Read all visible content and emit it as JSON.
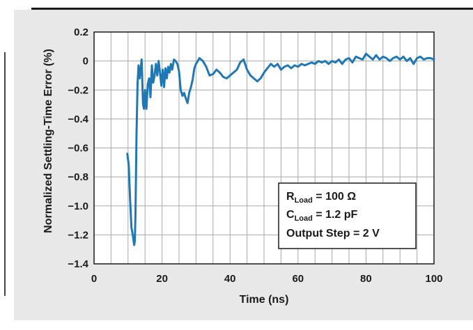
{
  "chart_data": {
    "type": "line",
    "title": "",
    "xlabel": "Time (ns)",
    "ylabel": "Normalized Settling-Time Error (%)",
    "xlim": [
      0,
      100
    ],
    "ylim": [
      -1.4,
      0.2
    ],
    "x_ticks": [
      "0",
      "20",
      "40",
      "60",
      "80",
      "100"
    ],
    "y_ticks": [
      "0.2",
      "0",
      "−0.2",
      "−0.4",
      "−0.6",
      "−0.8",
      "−1.0",
      "−1.2",
      "−1.4"
    ],
    "grid": true,
    "line_color": "#1f77b4",
    "legend": {
      "placement": "bottom-right",
      "lines": [
        {
          "main": "R",
          "sub": "Load",
          "rest": " = 100 Ω"
        },
        {
          "main": "C",
          "sub": "Load",
          "rest": " = 1.2 pF"
        },
        {
          "main": "Output Step = 2 V",
          "sub": "",
          "rest": ""
        }
      ]
    },
    "series": [
      {
        "x": [
          9.8,
          10.2,
          10.6,
          11.0,
          11.4,
          11.8,
          12.0,
          12.2,
          12.5,
          12.8,
          13.1,
          13.4,
          13.7,
          14.0,
          14.4,
          14.7,
          15.0,
          15.4,
          15.8,
          16.2,
          16.6,
          17.0,
          17.4,
          17.8,
          18.2,
          18.6,
          19.0,
          19.4,
          19.8,
          20.2,
          20.6,
          21.0,
          21.4,
          21.8,
          22.2,
          22.6,
          23.0,
          23.5,
          24.0,
          24.5,
          25.0,
          25.5,
          26.0,
          26.5,
          27.0,
          27.5,
          28.0,
          28.5,
          29.0,
          29.5,
          30.0,
          31.0,
          32.0,
          33.0,
          34.0,
          35.0,
          36.0,
          37.0,
          38.0,
          39.0,
          40.0,
          41.0,
          42.0,
          43.0,
          44.0,
          45.0,
          46.0,
          47.0,
          48.0,
          49.0,
          50.0,
          51.0,
          52.0,
          53.0,
          54.0,
          55.0,
          56.0,
          57.0,
          58.0,
          59.0,
          60.0,
          61.0,
          62.0,
          63.0,
          64.0,
          65.0,
          66.0,
          67.0,
          68.0,
          69.0,
          70.0,
          71.0,
          72.0,
          73.0,
          74.0,
          75.0,
          76.0,
          77.0,
          78.0,
          79.0,
          80.0,
          81.0,
          82.0,
          83.0,
          84.0,
          85.0,
          86.0,
          87.0,
          88.0,
          89.0,
          90.0,
          91.0,
          92.0,
          93.0,
          94.0,
          95.0,
          96.0,
          97.0,
          98.0,
          99.0,
          100.0
        ],
        "y": [
          -0.64,
          -0.72,
          -0.95,
          -1.15,
          -1.2,
          -1.27,
          -1.24,
          -1.05,
          -0.5,
          -0.15,
          -0.03,
          -0.12,
          -0.06,
          0.01,
          -0.3,
          -0.33,
          -0.2,
          -0.33,
          -0.16,
          -0.12,
          -0.25,
          -0.03,
          -0.15,
          -0.1,
          -0.02,
          -0.1,
          0.0,
          -0.08,
          -0.17,
          -0.06,
          -0.18,
          -0.05,
          -0.12,
          -0.04,
          -0.08,
          -0.02,
          -0.06,
          0.01,
          0.0,
          -0.02,
          -0.07,
          -0.2,
          -0.24,
          -0.22,
          -0.26,
          -0.29,
          -0.22,
          -0.18,
          -0.13,
          -0.05,
          -0.02,
          0.02,
          0.0,
          -0.04,
          -0.1,
          -0.09,
          -0.06,
          -0.08,
          -0.11,
          -0.12,
          -0.1,
          -0.08,
          -0.06,
          -0.01,
          0.01,
          -0.06,
          -0.1,
          -0.12,
          -0.14,
          -0.12,
          -0.08,
          -0.05,
          -0.02,
          -0.04,
          -0.02,
          -0.06,
          -0.04,
          -0.03,
          -0.05,
          -0.03,
          -0.04,
          -0.02,
          -0.03,
          -0.02,
          -0.01,
          -0.02,
          0.0,
          -0.01,
          0.0,
          -0.02,
          0.0,
          -0.01,
          0.01,
          -0.02,
          0.01,
          0.02,
          -0.01,
          0.03,
          0.02,
          0.01,
          0.05,
          0.03,
          0.01,
          0.04,
          0.01,
          0.03,
          0.02,
          0.0,
          0.02,
          0.03,
          0.01,
          0.03,
          0.0,
          0.02,
          -0.02,
          0.02,
          0.03,
          0.01,
          0.02,
          0.02,
          0.01
        ]
      }
    ]
  }
}
